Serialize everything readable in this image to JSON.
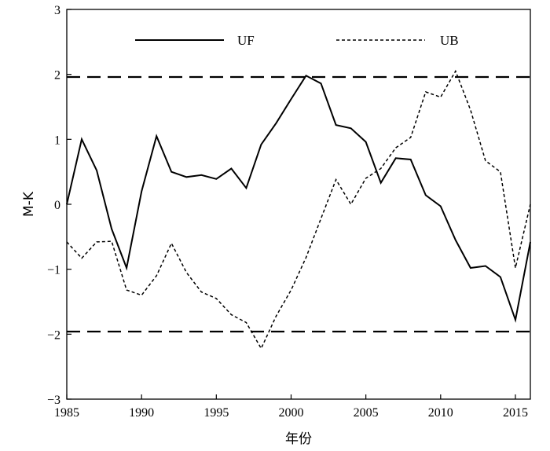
{
  "chart_data": {
    "type": "line",
    "title": "",
    "xlabel": "年份",
    "ylabel": "M-K",
    "xlim": [
      1985,
      2016
    ],
    "ylim": [
      -3,
      3
    ],
    "xticks": [
      1985,
      1990,
      1995,
      2000,
      2005,
      2010,
      2015
    ],
    "xtick_labels": [
      "1985",
      "1990",
      "1995",
      "2000",
      "2005",
      "2010",
      "2015"
    ],
    "yticks": [
      -3,
      -2,
      -1,
      0,
      1,
      2,
      3
    ],
    "ytick_labels": [
      "−3",
      "−2",
      "−1",
      "0",
      "1",
      "2",
      "3"
    ],
    "grid": false,
    "legend_position": "top",
    "x": [
      1985,
      1986,
      1987,
      1988,
      1989,
      1990,
      1991,
      1992,
      1993,
      1994,
      1995,
      1996,
      1997,
      1998,
      1999,
      2000,
      2001,
      2002,
      2003,
      2004,
      2005,
      2006,
      2007,
      2008,
      2009,
      2010,
      2011,
      2012,
      2013,
      2014,
      2015,
      2016
    ],
    "series": [
      {
        "name": "UF",
        "style": "solid",
        "values": [
          0.0,
          1.0,
          0.52,
          -0.38,
          -0.98,
          0.2,
          1.05,
          0.5,
          0.42,
          0.45,
          0.39,
          0.55,
          0.25,
          0.92,
          1.25,
          1.62,
          1.98,
          1.86,
          1.22,
          1.17,
          0.96,
          0.33,
          0.71,
          0.69,
          0.14,
          -0.03,
          -0.55,
          -0.98,
          -0.95,
          -1.12,
          -1.78,
          -0.58
        ]
      },
      {
        "name": "UB",
        "style": "dashed",
        "values": [
          -0.58,
          -0.83,
          -0.58,
          -0.57,
          -1.32,
          -1.4,
          -1.1,
          -0.6,
          -1.05,
          -1.35,
          -1.45,
          -1.7,
          -1.82,
          -2.22,
          -1.72,
          -1.32,
          -0.82,
          -0.22,
          0.38,
          0.0,
          0.4,
          0.55,
          0.87,
          1.03,
          1.73,
          1.65,
          2.05,
          1.45,
          0.67,
          0.5,
          -0.98,
          0.0
        ]
      }
    ],
    "reference_lines": [
      {
        "y": 1.96,
        "style": "long-dash"
      },
      {
        "y": -1.96,
        "style": "long-dash"
      }
    ],
    "colors": {
      "line": "#000000",
      "axis": "#000000",
      "background": "#ffffff"
    }
  }
}
